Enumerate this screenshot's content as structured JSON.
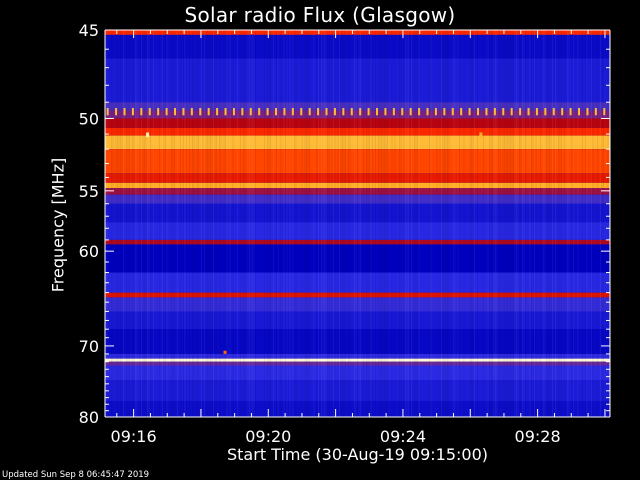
{
  "chart_data": {
    "type": "heatmap",
    "title": "Solar radio Flux (Glasgow)",
    "xlabel": "Start Time (30-Aug-19 09:15:00)",
    "ylabel": "Frequency [MHz]",
    "footer": "Updated Sun Sep  8 06:45:47 2019",
    "x_unit": "minutes after 09:00",
    "xlim": [
      15.15,
      30.15
    ],
    "x_ticks": [
      {
        "value": 16,
        "label": "09:16"
      },
      {
        "value": 20,
        "label": "09:20"
      },
      {
        "value": 24,
        "label": "09:24"
      },
      {
        "value": 28,
        "label": "09:28"
      }
    ],
    "ylim": [
      80,
      45
    ],
    "y_ticks": [
      45,
      50,
      55,
      60,
      70,
      80
    ],
    "y_scale": "reciprocal",
    "colormap": [
      "#0000c0",
      "#2a2ae6",
      "#5030b8",
      "#8b1a6a",
      "#c00000",
      "#ff2a00",
      "#ff8c00",
      "#ffe060",
      "#ffffe8"
    ],
    "bands": [
      {
        "from": 45.0,
        "to": 45.25,
        "level": 0.62
      },
      {
        "from": 45.25,
        "to": 46.5,
        "level": 0.03
      },
      {
        "from": 46.5,
        "to": 49.0,
        "level": 0.08
      },
      {
        "from": 49.0,
        "to": 49.5,
        "level": 0.22
      },
      {
        "from": 49.5,
        "to": 50.0,
        "level": 0.33
      },
      {
        "from": 50.0,
        "to": 50.6,
        "level": 0.48
      },
      {
        "from": 50.6,
        "to": 51.1,
        "level": 0.62
      },
      {
        "from": 51.1,
        "to": 52.0,
        "level": 0.82
      },
      {
        "from": 52.0,
        "to": 53.7,
        "level": 0.66
      },
      {
        "from": 53.7,
        "to": 54.4,
        "level": 0.58
      },
      {
        "from": 54.4,
        "to": 54.8,
        "level": 0.8
      },
      {
        "from": 54.8,
        "to": 55.3,
        "level": 0.42
      },
      {
        "from": 55.3,
        "to": 56.0,
        "level": 0.2
      },
      {
        "from": 56.0,
        "to": 57.5,
        "level": 0.06
      },
      {
        "from": 57.5,
        "to": 59.0,
        "level": 0.12
      },
      {
        "from": 59.0,
        "to": 59.4,
        "level": 0.46
      },
      {
        "from": 59.4,
        "to": 62.0,
        "level": 0.0
      },
      {
        "from": 62.0,
        "to": 64.0,
        "level": 0.12
      },
      {
        "from": 64.0,
        "to": 64.5,
        "level": 0.56
      },
      {
        "from": 64.5,
        "to": 66.0,
        "level": 0.16
      },
      {
        "from": 66.0,
        "to": 68.0,
        "level": 0.07
      },
      {
        "from": 68.0,
        "to": 71.0,
        "level": 0.02
      },
      {
        "from": 71.0,
        "to": 71.6,
        "level": 0.14
      },
      {
        "from": 71.6,
        "to": 72.0,
        "level": 0.98
      },
      {
        "from": 72.0,
        "to": 72.5,
        "level": 0.3
      },
      {
        "from": 72.5,
        "to": 74.5,
        "level": 0.13
      },
      {
        "from": 74.5,
        "to": 77.5,
        "level": 0.08
      },
      {
        "from": 77.5,
        "to": 80.0,
        "level": 0.04
      }
    ],
    "bursts": [
      {
        "time": 16.4,
        "from": 50.9,
        "to": 51.2,
        "level": 0.95
      },
      {
        "time": 26.3,
        "from": 50.9,
        "to": 51.2,
        "level": 0.8
      },
      {
        "time": 18.7,
        "from": 70.6,
        "to": 71.0,
        "level": 0.7
      }
    ],
    "periodic_marks": {
      "from": 49.35,
      "to": 49.8,
      "start": 15.2,
      "step": 0.25,
      "level": 0.82
    }
  }
}
